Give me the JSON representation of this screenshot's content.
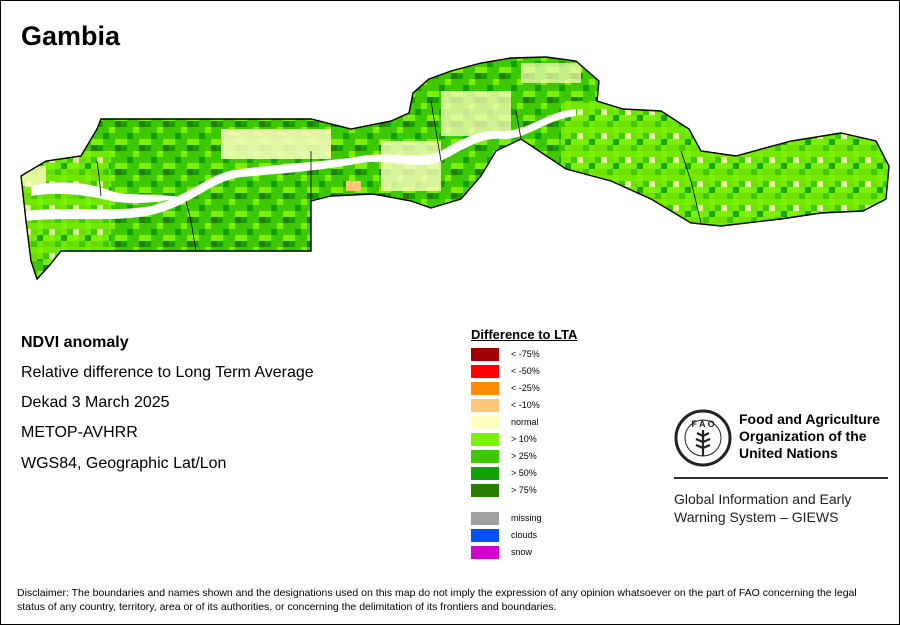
{
  "map": {
    "title": "Gambia",
    "info_lines": [
      "NDVI anomaly",
      "Relative difference to Long Term Average",
      "Dekad 3 March 2025",
      "METOP-AVHRR",
      "WGS84, Geographic Lat/Lon"
    ],
    "colors": {
      "water": "#ffffff",
      "border": "#000000",
      "normal": "#ffffc0",
      "g10": "#7cf000",
      "g25": "#3ec800",
      "g50": "#10a000",
      "g75": "#287d00"
    }
  },
  "legend": {
    "title": "Difference to LTA",
    "items": [
      {
        "label": "< -75%",
        "color": "#a00000"
      },
      {
        "label": "< -50%",
        "color": "#ff0000"
      },
      {
        "label": "< -25%",
        "color": "#ff8c00"
      },
      {
        "label": "< -10%",
        "color": "#ffc878"
      },
      {
        "label": "normal",
        "color": "#ffffc0"
      },
      {
        "label": "> 10%",
        "color": "#7cf000"
      },
      {
        "label": "> 25%",
        "color": "#3ec800"
      },
      {
        "label": "> 50%",
        "color": "#10a000"
      },
      {
        "label": "> 75%",
        "color": "#287d00"
      }
    ],
    "extra_items": [
      {
        "label": "missing",
        "color": "#a0a0a0"
      },
      {
        "label": "clouds",
        "color": "#0050ff"
      },
      {
        "label": "snow",
        "color": "#d000d0"
      }
    ]
  },
  "fao": {
    "emblem_text": "FIAT PANIS",
    "name_lines": [
      "Food and Agriculture",
      "Organization of the",
      "United Nations"
    ],
    "giews_lines": [
      "Global Information and Early",
      "Warning System – GIEWS"
    ]
  },
  "disclaimer": "Disclaimer: The boundaries and names shown and the designations used on this map do not imply the expression of any opinion whatsoever on the part of FAO concerning the legal status of any country, territory, area or of its authorities, or concerning the delimitation of its frontiers and boundaries."
}
